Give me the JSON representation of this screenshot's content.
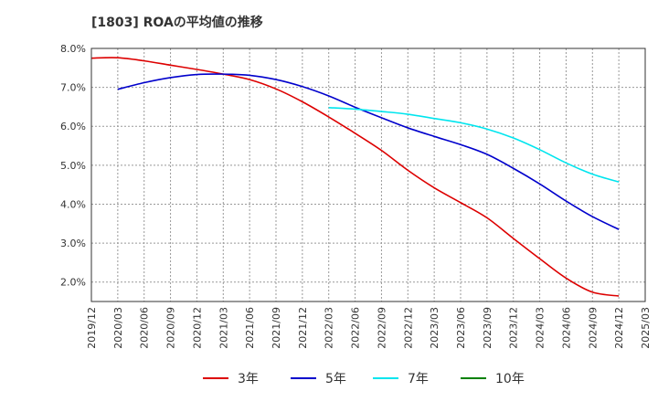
{
  "title": "[1803]  ROAの平均値の推移",
  "chart_data": {
    "type": "line",
    "title": "[1803]  ROAの平均値の推移",
    "xlabel": "",
    "ylabel": "",
    "x": [
      "2019/12",
      "2020/03",
      "2020/06",
      "2020/09",
      "2020/12",
      "2021/03",
      "2021/06",
      "2021/09",
      "2021/12",
      "2022/03",
      "2022/06",
      "2022/09",
      "2022/12",
      "2023/03",
      "2023/06",
      "2023/09",
      "2023/12",
      "2024/03",
      "2024/06",
      "2024/09",
      "2024/12",
      "2025/03"
    ],
    "y_ticks": [
      "2.0%",
      "3.0%",
      "4.0%",
      "5.0%",
      "6.0%",
      "7.0%",
      "8.0%"
    ],
    "ylim": [
      1.5,
      8.0
    ],
    "grid": true,
    "legend_position": "bottom",
    "series": [
      {
        "name": "3年",
        "color": "#dd0000",
        "values": [
          7.75,
          7.76,
          7.68,
          7.57,
          7.46,
          7.34,
          7.2,
          6.96,
          6.63,
          6.24,
          5.82,
          5.38,
          4.87,
          4.42,
          4.04,
          3.65,
          3.12,
          2.6,
          2.1,
          1.74,
          1.64,
          null
        ]
      },
      {
        "name": "5年",
        "color": "#0000cc",
        "values": [
          null,
          6.95,
          7.12,
          7.25,
          7.33,
          7.34,
          7.31,
          7.2,
          7.02,
          6.78,
          6.49,
          6.22,
          5.96,
          5.74,
          5.53,
          5.28,
          4.92,
          4.52,
          4.08,
          3.68,
          3.35,
          null
        ]
      },
      {
        "name": "7年",
        "color": "#00e5ee",
        "values": [
          null,
          null,
          null,
          null,
          null,
          null,
          null,
          null,
          null,
          6.48,
          6.44,
          6.38,
          6.31,
          6.2,
          6.09,
          5.93,
          5.7,
          5.4,
          5.06,
          4.77,
          4.57,
          null
        ]
      },
      {
        "name": "10年",
        "color": "#008000",
        "values": [
          null,
          null,
          null,
          null,
          null,
          null,
          null,
          null,
          null,
          null,
          null,
          null,
          null,
          null,
          null,
          null,
          null,
          null,
          null,
          null,
          null,
          null
        ]
      }
    ]
  }
}
